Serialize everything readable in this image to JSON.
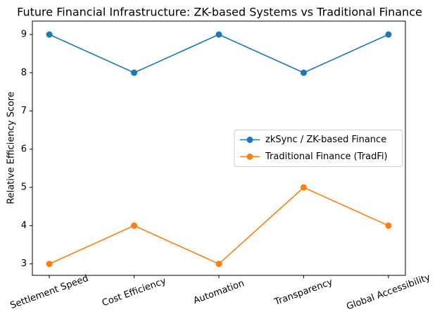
{
  "chart_data": {
    "type": "line",
    "title": "Future Financial Infrastructure: ZK-based Systems vs Traditional Finance",
    "y_label": "Relative Efficiency Score",
    "categories": [
      "Settlement Speed",
      "Cost Efficiency",
      "Automation",
      "Transparency",
      "Global Accessibility"
    ],
    "series": [
      {
        "name": "zkSync / ZK-based Finance",
        "color": "#1f77b4",
        "values": [
          9,
          8,
          9,
          8,
          9
        ]
      },
      {
        "name": "Traditional Finance (TradFi)",
        "color": "#ff7f0e",
        "values": [
          3,
          4,
          3,
          5,
          4
        ]
      }
    ],
    "ylim": [
      2.7,
      9.35
    ],
    "yticks": [
      3,
      4,
      5,
      6,
      7,
      8,
      9
    ],
    "legend": "center right",
    "grid": false
  }
}
